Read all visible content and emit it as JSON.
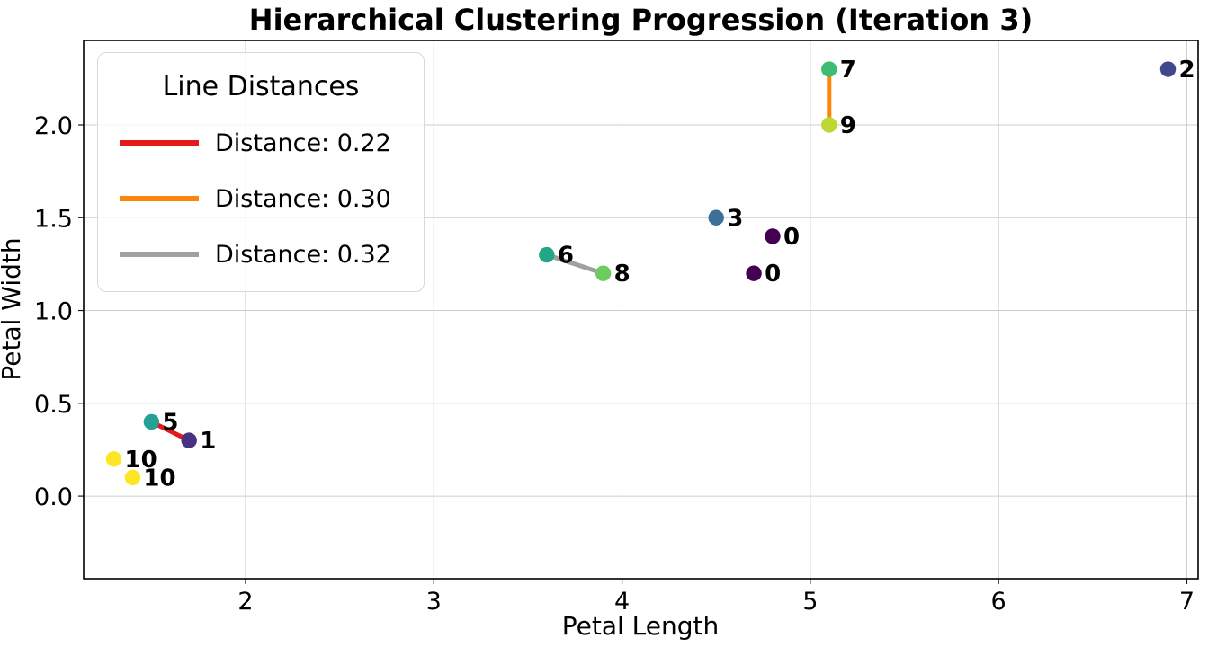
{
  "chart_data": {
    "type": "scatter",
    "title": "Hierarchical Clustering Progression (Iteration 3)",
    "xlabel": "Petal Length",
    "ylabel": "Petal Width",
    "xlim": [
      1.14,
      7.06
    ],
    "ylim": [
      -0.445,
      2.455
    ],
    "grid": true,
    "grid_color": "#cccccc",
    "frame_color": "#000000",
    "xticks": [
      {
        "v": 2,
        "label": "2"
      },
      {
        "v": 3,
        "label": "3"
      },
      {
        "v": 4,
        "label": "4"
      },
      {
        "v": 5,
        "label": "5"
      },
      {
        "v": 6,
        "label": "6"
      },
      {
        "v": 7,
        "label": "7"
      }
    ],
    "yticks": [
      {
        "v": 0.0,
        "label": "0.0"
      },
      {
        "v": 0.5,
        "label": "0.5"
      },
      {
        "v": 1.0,
        "label": "1.0"
      },
      {
        "v": 1.5,
        "label": "1.5"
      },
      {
        "v": 2.0,
        "label": "2.0"
      }
    ],
    "points": [
      {
        "x": 4.8,
        "y": 1.4,
        "label": "0",
        "color": "#440154"
      },
      {
        "x": 4.7,
        "y": 1.2,
        "label": "0",
        "color": "#440154"
      },
      {
        "x": 1.7,
        "y": 0.3,
        "label": "1",
        "color": "#46327e"
      },
      {
        "x": 6.9,
        "y": 2.3,
        "label": "2",
        "color": "#3f4889"
      },
      {
        "x": 4.5,
        "y": 1.5,
        "label": "3",
        "color": "#3e6e9a"
      },
      {
        "x": 1.5,
        "y": 0.4,
        "label": "5",
        "color": "#25a295"
      },
      {
        "x": 3.6,
        "y": 1.3,
        "label": "6",
        "color": "#23a685"
      },
      {
        "x": 5.1,
        "y": 2.3,
        "label": "7",
        "color": "#3fbc73"
      },
      {
        "x": 3.9,
        "y": 1.2,
        "label": "8",
        "color": "#6ccc5e"
      },
      {
        "x": 5.1,
        "y": 2.0,
        "label": "9",
        "color": "#bcd832"
      },
      {
        "x": 1.3,
        "y": 0.2,
        "label": "10",
        "color": "#fde725"
      },
      {
        "x": 1.4,
        "y": 0.1,
        "label": "10",
        "color": "#fde725"
      }
    ],
    "lines": [
      {
        "x1": 1.5,
        "y1": 0.4,
        "x2": 1.7,
        "y2": 0.3,
        "distance": 0.22,
        "color": "#e3191c"
      },
      {
        "x1": 5.1,
        "y1": 2.3,
        "x2": 5.1,
        "y2": 2.0,
        "distance": 0.3,
        "color": "#ff840a"
      },
      {
        "x1": 3.6,
        "y1": 1.3,
        "x2": 3.9,
        "y2": 1.2,
        "distance": 0.32,
        "color": "#a0a0a0"
      }
    ],
    "legend": {
      "title": "Line Distances",
      "position": "upper left",
      "entries": [
        {
          "label": "Distance: 0.22",
          "color": "#e3191c"
        },
        {
          "label": "Distance: 0.30",
          "color": "#ff840a"
        },
        {
          "label": "Distance: 0.32",
          "color": "#a0a0a0"
        }
      ]
    }
  }
}
